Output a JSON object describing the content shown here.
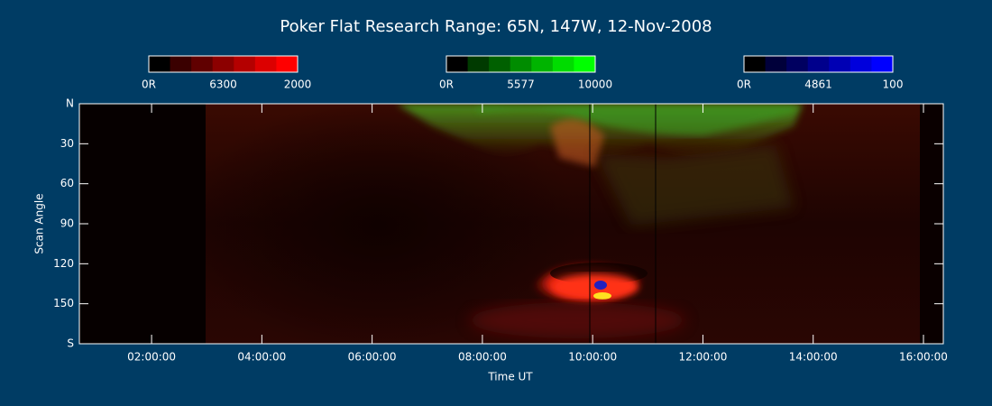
{
  "chart_data": {
    "type": "keogram",
    "title": "Poker Flat Research Range: 65N, 147W, 12-Nov-2008",
    "xlabel": "Time UT",
    "ylabel": "Scan Angle",
    "xlim": [
      0.69,
      16.36
    ],
    "xticks": [
      {
        "value": 2,
        "label": "02:00:00"
      },
      {
        "value": 4,
        "label": "04:00:00"
      },
      {
        "value": 6,
        "label": "06:00:00"
      },
      {
        "value": 8,
        "label": "08:00:00"
      },
      {
        "value": 10,
        "label": "10:00:00"
      },
      {
        "value": 12,
        "label": "12:00:00"
      },
      {
        "value": 14,
        "label": "14:00:00"
      },
      {
        "value": 16,
        "label": "16:00:00"
      }
    ],
    "ylim": [
      0,
      180
    ],
    "yticks": [
      {
        "value": 0,
        "label": "N"
      },
      30,
      60,
      90,
      120,
      150,
      {
        "value": 180,
        "label": "S"
      }
    ],
    "colorbars": [
      {
        "colors": [
          "#000000",
          "#3a0000",
          "#600000",
          "#8c0000",
          "#b40000",
          "#dc0000",
          "#ff0000"
        ],
        "labels": [
          "0R",
          "6300",
          "2000"
        ]
      },
      {
        "colors": [
          "#000000",
          "#003a00",
          "#006000",
          "#008c00",
          "#00b400",
          "#00dc00",
          "#00ff00"
        ],
        "labels": [
          "0R",
          "5577",
          "10000"
        ]
      },
      {
        "colors": [
          "#000000",
          "#00003a",
          "#000060",
          "#00008c",
          "#0000b4",
          "#0000dc",
          "#0000ff"
        ],
        "labels": [
          "0R",
          "4861",
          "100"
        ]
      }
    ]
  }
}
